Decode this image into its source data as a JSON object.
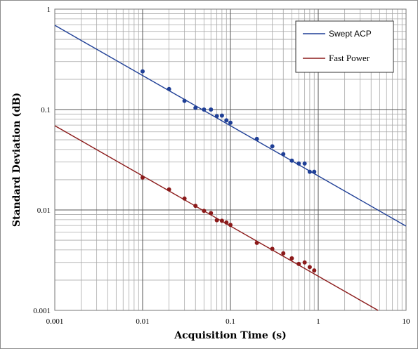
{
  "chart_data": {
    "type": "scatter",
    "title": "",
    "xlabel": "Acquisition Time (s)",
    "ylabel": "Standard Deviation (dB)",
    "x_scale": "log",
    "y_scale": "log",
    "xlim": [
      0.001,
      10
    ],
    "ylim": [
      0.001,
      1
    ],
    "x_ticks": [
      "0.001",
      "0.01",
      "0.1",
      "1",
      "10"
    ],
    "y_ticks": [
      "0.001",
      "0.01",
      "0.1",
      "1"
    ],
    "grid": true,
    "legend_position": "top-right",
    "series": [
      {
        "name": "Swept ACP",
        "color": "#1f3f96",
        "x": [
          0.01,
          0.02,
          0.03,
          0.04,
          0.05,
          0.06,
          0.07,
          0.08,
          0.09,
          0.1,
          0.2,
          0.3,
          0.4,
          0.5,
          0.6,
          0.7,
          0.8,
          0.9
        ],
        "y": [
          0.24,
          0.16,
          0.122,
          0.104,
          0.1,
          0.1,
          0.086,
          0.087,
          0.078,
          0.074,
          0.051,
          0.043,
          0.036,
          0.031,
          0.029,
          0.029,
          0.024,
          0.024
        ],
        "trendline": [
          [
            0.001,
            0.69
          ],
          [
            10,
            0.0069
          ]
        ]
      },
      {
        "name": "Fast Power",
        "color": "#8b1a1a",
        "x": [
          0.01,
          0.02,
          0.03,
          0.04,
          0.05,
          0.06,
          0.07,
          0.08,
          0.09,
          0.1,
          0.2,
          0.3,
          0.4,
          0.5,
          0.6,
          0.7,
          0.8,
          0.9
        ],
        "y": [
          0.021,
          0.016,
          0.013,
          0.011,
          0.0098,
          0.0093,
          0.0079,
          0.0078,
          0.0075,
          0.0071,
          0.0047,
          0.0041,
          0.0037,
          0.0033,
          0.0029,
          0.003,
          0.0027,
          0.0025
        ],
        "trendline": [
          [
            0.001,
            0.069
          ],
          [
            4.8,
            0.001
          ]
        ]
      }
    ]
  }
}
